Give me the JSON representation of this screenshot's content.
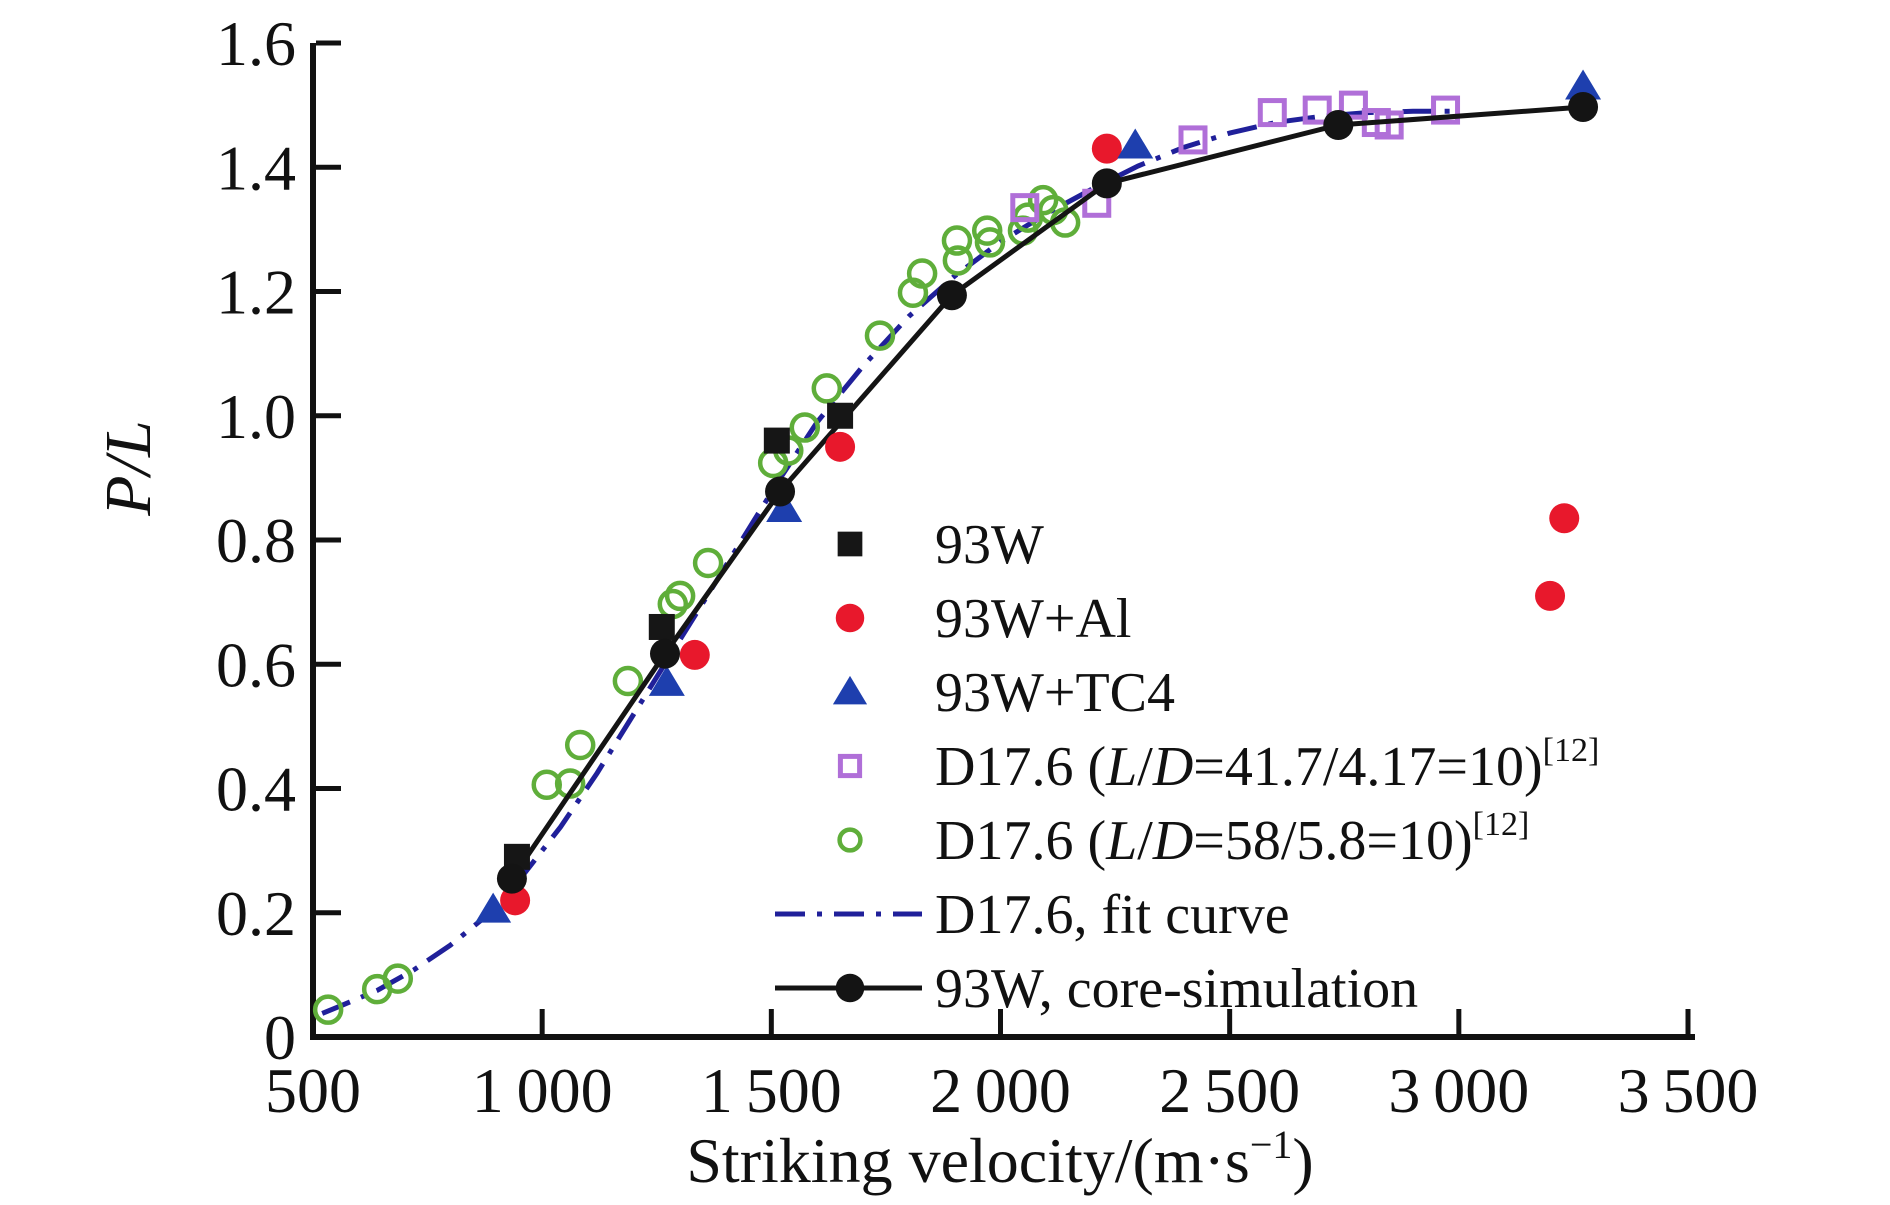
{
  "chart_data": {
    "type": "scatter",
    "title": "",
    "xlabel": "Striking velocity/(m·s−1)",
    "xlabel_parts": [
      {
        "t": "Striking velocity/(m·s"
      },
      {
        "t": "−1",
        "sup": true
      },
      {
        "t": ")"
      }
    ],
    "ylabel": "P/L",
    "xlim": [
      500,
      3500
    ],
    "ylim": [
      0,
      1.6
    ],
    "x_ticks": [
      500,
      1000,
      1500,
      2000,
      2500,
      3000,
      3500
    ],
    "x_tick_labels": [
      "500",
      "1 000",
      "1 500",
      "2 000",
      "2 500",
      "3 000",
      "3 500"
    ],
    "y_ticks": [
      0,
      0.2,
      0.4,
      0.6,
      0.8,
      1.0,
      1.2,
      1.4,
      1.6
    ],
    "y_tick_labels": [
      "0",
      "0.2",
      "0.4",
      "0.6",
      "0.8",
      "1.0",
      "1.2",
      "1.4",
      "1.6"
    ],
    "grid": false,
    "legend_position": "inside-center-right",
    "axis_color": "#111111",
    "series": [
      {
        "name": "93W",
        "kind": "scatter",
        "marker": "square-filled",
        "color": "#161616",
        "label_parts": [
          {
            "t": "93W"
          }
        ],
        "points": [
          [
            945,
            0.29
          ],
          [
            1261,
            0.66
          ],
          [
            1512,
            0.96
          ],
          [
            1650,
            1.0
          ]
        ]
      },
      {
        "name": "93W+Al",
        "kind": "scatter",
        "marker": "circle-filled",
        "color": "#e8182c",
        "label_parts": [
          {
            "t": "93W+Al"
          }
        ],
        "points": [
          [
            941,
            0.22
          ],
          [
            1333,
            0.615
          ],
          [
            1650,
            0.95
          ],
          [
            2232,
            1.43
          ],
          [
            3199,
            0.71
          ],
          [
            3230,
            0.835
          ]
        ]
      },
      {
        "name": "93W+TC4",
        "kind": "scatter",
        "marker": "triangle-filled",
        "color": "#1e3fae",
        "label_parts": [
          {
            "t": "93W+TC4"
          }
        ],
        "points": [
          [
            893,
            0.205
          ],
          [
            1272,
            0.57
          ],
          [
            1528,
            0.85
          ],
          [
            2294,
            1.435
          ],
          [
            3271,
            1.53
          ]
        ]
      },
      {
        "name": "D17.6 (L/D=41.7/4.17=10)[12]",
        "kind": "scatter",
        "marker": "square-open",
        "color": "#b06fd8",
        "label_parts": [
          {
            "t": "D17.6 ("
          },
          {
            "t": "L",
            "i": true
          },
          {
            "t": "/"
          },
          {
            "t": "D",
            "i": true
          },
          {
            "t": "=41.7/4.17=10)"
          },
          {
            "t": "[12]",
            "sup": true
          }
        ],
        "points": [
          [
            2053,
            1.335
          ],
          [
            2210,
            1.342
          ],
          [
            2420,
            1.444
          ],
          [
            2593,
            1.488
          ],
          [
            2691,
            1.492
          ],
          [
            2770,
            1.5
          ],
          [
            2820,
            1.472
          ],
          [
            2848,
            1.468
          ],
          [
            2971,
            1.492
          ]
        ]
      },
      {
        "name": "D17.6 (L/D=58/5.8=10)[12]",
        "kind": "scatter",
        "marker": "circle-open",
        "color": "#5fae3a",
        "label_parts": [
          {
            "t": "D17.6 ("
          },
          {
            "t": "L",
            "i": true
          },
          {
            "t": "/"
          },
          {
            "t": "D",
            "i": true
          },
          {
            "t": "=58/5.8=10)"
          },
          {
            "t": "[12]",
            "sup": true
          }
        ],
        "points": [
          [
            533,
            0.044
          ],
          [
            640,
            0.077
          ],
          [
            685,
            0.094
          ],
          [
            1010,
            0.406
          ],
          [
            1061,
            0.408
          ],
          [
            1083,
            0.47
          ],
          [
            1187,
            0.573
          ],
          [
            1285,
            0.697
          ],
          [
            1301,
            0.71
          ],
          [
            1362,
            0.763
          ],
          [
            1504,
            0.924
          ],
          [
            1537,
            0.944
          ],
          [
            1573,
            0.981
          ],
          [
            1621,
            1.044
          ],
          [
            1737,
            1.129
          ],
          [
            1809,
            1.198
          ],
          [
            1829,
            1.229
          ],
          [
            1905,
            1.282
          ],
          [
            1907,
            1.25
          ],
          [
            1971,
            1.298
          ],
          [
            1977,
            1.279
          ],
          [
            2049,
            1.298
          ],
          [
            2060,
            1.319
          ],
          [
            2093,
            1.347
          ],
          [
            2115,
            1.331
          ],
          [
            2141,
            1.311
          ]
        ]
      },
      {
        "name": "D17.6, fit curve",
        "kind": "line",
        "line_style": "dash-dot",
        "color": "#20209a",
        "label_parts": [
          {
            "t": "D17.6, fit curve"
          }
        ],
        "points": [
          [
            520,
            0.038
          ],
          [
            560,
            0.05
          ],
          [
            640,
            0.075
          ],
          [
            720,
            0.108
          ],
          [
            800,
            0.148
          ],
          [
            880,
            0.196
          ],
          [
            960,
            0.262
          ],
          [
            1040,
            0.338
          ],
          [
            1120,
            0.425
          ],
          [
            1200,
            0.52
          ],
          [
            1280,
            0.615
          ],
          [
            1360,
            0.71
          ],
          [
            1440,
            0.805
          ],
          [
            1520,
            0.9
          ],
          [
            1600,
            0.99
          ],
          [
            1700,
            1.08
          ],
          [
            1800,
            1.16
          ],
          [
            1900,
            1.225
          ],
          [
            2000,
            1.28
          ],
          [
            2100,
            1.325
          ],
          [
            2200,
            1.365
          ],
          [
            2300,
            1.402
          ],
          [
            2400,
            1.432
          ],
          [
            2500,
            1.455
          ],
          [
            2600,
            1.472
          ],
          [
            2700,
            1.482
          ],
          [
            2800,
            1.488
          ],
          [
            2900,
            1.49
          ],
          [
            3000,
            1.49
          ]
        ]
      },
      {
        "name": "93W, core-simulation",
        "kind": "line-marker",
        "marker": "circle-filled",
        "color": "#141414",
        "label_parts": [
          {
            "t": "93W, core-simulation"
          }
        ],
        "points": [
          [
            934,
            0.255
          ],
          [
            1268,
            0.617
          ],
          [
            1519,
            0.878
          ],
          [
            1894,
            1.194
          ],
          [
            2232,
            1.374
          ],
          [
            2737,
            1.468
          ],
          [
            3271,
            1.497
          ]
        ]
      }
    ]
  }
}
